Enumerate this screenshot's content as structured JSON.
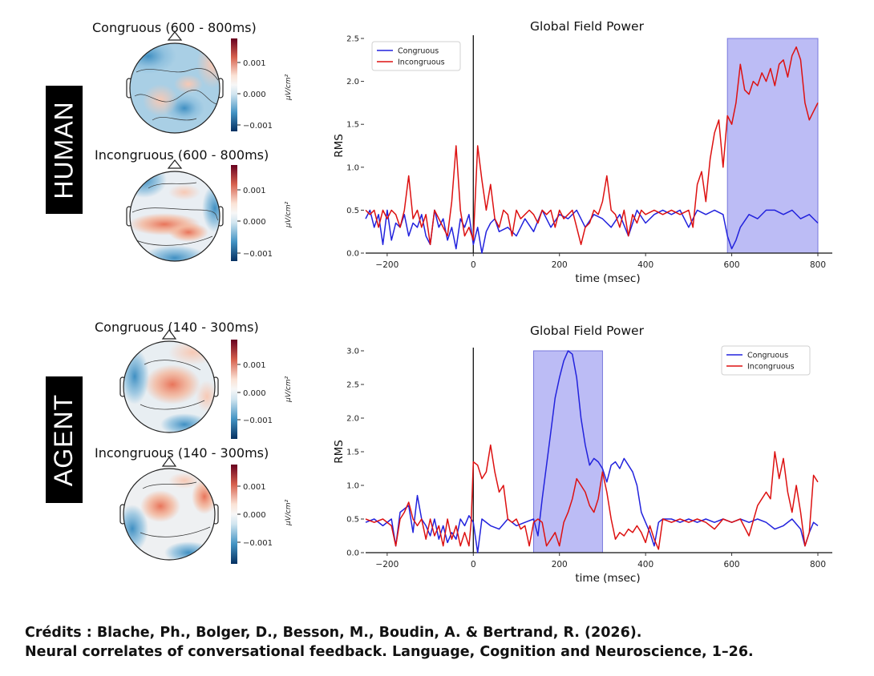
{
  "rows": [
    {
      "label": "HUMAN",
      "topomaps": [
        {
          "title": "Congruous (600 - 800ms)",
          "ticks": [
            "0.001",
            "0.000",
            "−0.001"
          ],
          "unit": "μV/cm²"
        },
        {
          "title": "Incongruous (600 - 800ms)",
          "ticks": [
            "0.001",
            "0.000",
            "−0.001"
          ],
          "unit": "μV/cm²"
        }
      ]
    },
    {
      "label": "AGENT",
      "topomaps": [
        {
          "title": "Congruous (140 - 300ms)",
          "ticks": [
            "0.001",
            "0.000",
            "−0.001"
          ],
          "unit": "μV/cm²"
        },
        {
          "title": "Incongruous (140 - 300ms)",
          "ticks": [
            "0.001",
            "0.000",
            "−0.001"
          ],
          "unit": "μV/cm²"
        }
      ]
    }
  ],
  "chart_data": [
    {
      "type": "line",
      "title": "Global Field Power",
      "xlabel": "time (msec)",
      "ylabel": "RMS",
      "xlim": [
        -250,
        800
      ],
      "ylim": [
        0,
        2.5
      ],
      "xticks": [
        -200,
        0,
        200,
        400,
        600,
        800
      ],
      "yticks": [
        0.0,
        0.5,
        1.0,
        1.5,
        2.0,
        2.5
      ],
      "legend": "top-left",
      "highlight": [
        590,
        800
      ],
      "vline": 0,
      "series": [
        {
          "name": "Congruous",
          "color": "#2222dd",
          "x": [
            -250,
            -240,
            -230,
            -220,
            -210,
            -200,
            -190,
            -180,
            -170,
            -160,
            -150,
            -140,
            -130,
            -120,
            -110,
            -100,
            -90,
            -80,
            -70,
            -60,
            -50,
            -40,
            -30,
            -20,
            -10,
            0,
            10,
            20,
            30,
            40,
            50,
            60,
            80,
            100,
            120,
            140,
            160,
            180,
            200,
            220,
            240,
            260,
            280,
            300,
            320,
            340,
            360,
            380,
            400,
            420,
            440,
            460,
            480,
            500,
            520,
            540,
            560,
            580,
            590,
            600,
            610,
            620,
            640,
            660,
            680,
            700,
            720,
            740,
            760,
            780,
            800
          ],
          "y": [
            0.4,
            0.5,
            0.3,
            0.45,
            0.1,
            0.5,
            0.15,
            0.35,
            0.3,
            0.45,
            0.2,
            0.35,
            0.3,
            0.45,
            0.2,
            0.1,
            0.5,
            0.3,
            0.4,
            0.15,
            0.3,
            0.05,
            0.4,
            0.3,
            0.45,
            0.1,
            0.3,
            0.0,
            0.25,
            0.35,
            0.4,
            0.25,
            0.3,
            0.2,
            0.4,
            0.25,
            0.5,
            0.3,
            0.45,
            0.4,
            0.5,
            0.3,
            0.45,
            0.4,
            0.3,
            0.45,
            0.2,
            0.5,
            0.35,
            0.45,
            0.5,
            0.45,
            0.5,
            0.3,
            0.5,
            0.45,
            0.5,
            0.45,
            0.2,
            0.05,
            0.15,
            0.3,
            0.45,
            0.4,
            0.5,
            0.5,
            0.45,
            0.5,
            0.4,
            0.45,
            0.35
          ]
        },
        {
          "name": "Incongruous",
          "color": "#dd1111",
          "x": [
            -250,
            -240,
            -230,
            -220,
            -210,
            -200,
            -190,
            -180,
            -170,
            -160,
            -150,
            -140,
            -130,
            -120,
            -110,
            -100,
            -90,
            -80,
            -70,
            -60,
            -50,
            -40,
            -30,
            -20,
            -10,
            0,
            5,
            10,
            20,
            30,
            40,
            50,
            60,
            70,
            80,
            90,
            100,
            110,
            120,
            130,
            140,
            150,
            160,
            170,
            180,
            190,
            200,
            210,
            220,
            230,
            240,
            250,
            260,
            270,
            280,
            290,
            300,
            310,
            320,
            330,
            340,
            350,
            360,
            370,
            380,
            390,
            400,
            420,
            440,
            460,
            480,
            500,
            510,
            520,
            530,
            540,
            550,
            560,
            570,
            580,
            590,
            600,
            610,
            620,
            630,
            640,
            650,
            660,
            670,
            680,
            690,
            700,
            710,
            720,
            730,
            740,
            750,
            760,
            770,
            780,
            790,
            800
          ],
          "y": [
            0.5,
            0.45,
            0.5,
            0.3,
            0.5,
            0.4,
            0.5,
            0.45,
            0.3,
            0.5,
            0.9,
            0.4,
            0.5,
            0.3,
            0.45,
            0.1,
            0.5,
            0.4,
            0.3,
            0.2,
            0.6,
            1.25,
            0.5,
            0.2,
            0.3,
            0.15,
            0.7,
            1.25,
            0.85,
            0.5,
            0.8,
            0.4,
            0.3,
            0.5,
            0.45,
            0.2,
            0.5,
            0.4,
            0.45,
            0.5,
            0.45,
            0.35,
            0.5,
            0.45,
            0.5,
            0.3,
            0.5,
            0.4,
            0.45,
            0.5,
            0.3,
            0.1,
            0.3,
            0.35,
            0.5,
            0.45,
            0.6,
            0.9,
            0.5,
            0.45,
            0.3,
            0.5,
            0.2,
            0.45,
            0.35,
            0.5,
            0.45,
            0.5,
            0.45,
            0.5,
            0.45,
            0.5,
            0.3,
            0.8,
            0.95,
            0.6,
            1.1,
            1.4,
            1.55,
            1.0,
            1.6,
            1.5,
            1.75,
            2.2,
            1.9,
            1.85,
            2.0,
            1.95,
            2.1,
            2.0,
            2.15,
            1.95,
            2.2,
            2.25,
            2.05,
            2.3,
            2.4,
            2.25,
            1.75,
            1.55,
            1.65,
            1.75
          ]
        }
      ]
    },
    {
      "type": "line",
      "title": "Global Field Power",
      "xlabel": "time (msec)",
      "ylabel": "RMS",
      "xlim": [
        -250,
        800
      ],
      "ylim": [
        0,
        3.0
      ],
      "xticks": [
        -200,
        0,
        200,
        400,
        600,
        800
      ],
      "yticks": [
        0.0,
        0.5,
        1.0,
        1.5,
        2.0,
        2.5,
        3.0
      ],
      "legend": "top-right",
      "highlight": [
        140,
        300
      ],
      "vline": 0,
      "series": [
        {
          "name": "Congruous",
          "color": "#2222dd",
          "x": [
            -250,
            -230,
            -210,
            -190,
            -180,
            -170,
            -160,
            -150,
            -140,
            -130,
            -120,
            -110,
            -100,
            -90,
            -80,
            -70,
            -60,
            -50,
            -40,
            -30,
            -20,
            -10,
            0,
            10,
            20,
            40,
            60,
            80,
            100,
            120,
            140,
            150,
            160,
            170,
            180,
            190,
            200,
            210,
            220,
            230,
            240,
            250,
            260,
            270,
            280,
            290,
            300,
            310,
            320,
            330,
            340,
            350,
            360,
            370,
            380,
            390,
            400,
            410,
            420,
            430,
            440,
            460,
            480,
            500,
            520,
            540,
            560,
            580,
            600,
            620,
            640,
            660,
            680,
            700,
            720,
            740,
            760,
            770,
            780,
            790,
            800
          ],
          "y": [
            0.45,
            0.5,
            0.4,
            0.5,
            0.1,
            0.6,
            0.65,
            0.7,
            0.3,
            0.85,
            0.5,
            0.4,
            0.25,
            0.5,
            0.2,
            0.4,
            0.15,
            0.3,
            0.2,
            0.5,
            0.4,
            0.55,
            0.45,
            0.0,
            0.5,
            0.4,
            0.35,
            0.5,
            0.4,
            0.45,
            0.5,
            0.25,
            0.8,
            1.3,
            1.8,
            2.3,
            2.6,
            2.85,
            3.0,
            2.95,
            2.6,
            2.0,
            1.6,
            1.3,
            1.4,
            1.35,
            1.25,
            1.05,
            1.3,
            1.35,
            1.25,
            1.4,
            1.3,
            1.2,
            1.0,
            0.6,
            0.45,
            0.3,
            0.1,
            0.45,
            0.5,
            0.5,
            0.45,
            0.5,
            0.45,
            0.5,
            0.45,
            0.5,
            0.45,
            0.5,
            0.45,
            0.5,
            0.45,
            0.35,
            0.4,
            0.5,
            0.35,
            0.1,
            0.3,
            0.45,
            0.4
          ]
        },
        {
          "name": "Incongruous",
          "color": "#dd1111",
          "x": [
            -250,
            -230,
            -210,
            -190,
            -180,
            -170,
            -160,
            -150,
            -140,
            -130,
            -120,
            -110,
            -100,
            -90,
            -80,
            -70,
            -60,
            -50,
            -40,
            -30,
            -20,
            -10,
            -5,
            0,
            10,
            20,
            30,
            40,
            50,
            60,
            70,
            80,
            90,
            100,
            110,
            120,
            130,
            140,
            150,
            160,
            170,
            180,
            190,
            200,
            210,
            220,
            230,
            240,
            250,
            260,
            270,
            280,
            290,
            300,
            310,
            320,
            330,
            340,
            350,
            360,
            370,
            380,
            390,
            400,
            410,
            420,
            430,
            440,
            460,
            480,
            500,
            520,
            540,
            560,
            580,
            600,
            620,
            640,
            660,
            680,
            690,
            700,
            710,
            720,
            730,
            740,
            750,
            760,
            770,
            780,
            790,
            800
          ],
          "y": [
            0.5,
            0.45,
            0.5,
            0.4,
            0.1,
            0.5,
            0.6,
            0.75,
            0.5,
            0.4,
            0.5,
            0.2,
            0.5,
            0.25,
            0.4,
            0.1,
            0.5,
            0.2,
            0.4,
            0.1,
            0.3,
            0.1,
            0.45,
            1.35,
            1.3,
            1.1,
            1.2,
            1.6,
            1.2,
            0.9,
            1.0,
            0.5,
            0.45,
            0.5,
            0.35,
            0.4,
            0.1,
            0.45,
            0.5,
            0.45,
            0.1,
            0.2,
            0.3,
            0.1,
            0.45,
            0.6,
            0.8,
            1.1,
            1.0,
            0.9,
            0.7,
            0.6,
            0.8,
            1.2,
            0.9,
            0.5,
            0.2,
            0.3,
            0.25,
            0.35,
            0.3,
            0.4,
            0.3,
            0.15,
            0.4,
            0.2,
            0.05,
            0.5,
            0.45,
            0.5,
            0.45,
            0.5,
            0.45,
            0.35,
            0.5,
            0.45,
            0.5,
            0.25,
            0.7,
            0.9,
            0.8,
            1.5,
            1.1,
            1.4,
            0.9,
            0.6,
            1.0,
            0.6,
            0.1,
            0.3,
            1.15,
            1.05
          ]
        }
      ]
    }
  ],
  "credits": {
    "line1": "Crédits : Blache, Ph., Bolger, D., Besson, M., Boudin, A. & Bertrand, R. (2026).",
    "line2": "Neural correlates of conversational feedback. Language, Cognition and Neuroscience, 1–26."
  }
}
